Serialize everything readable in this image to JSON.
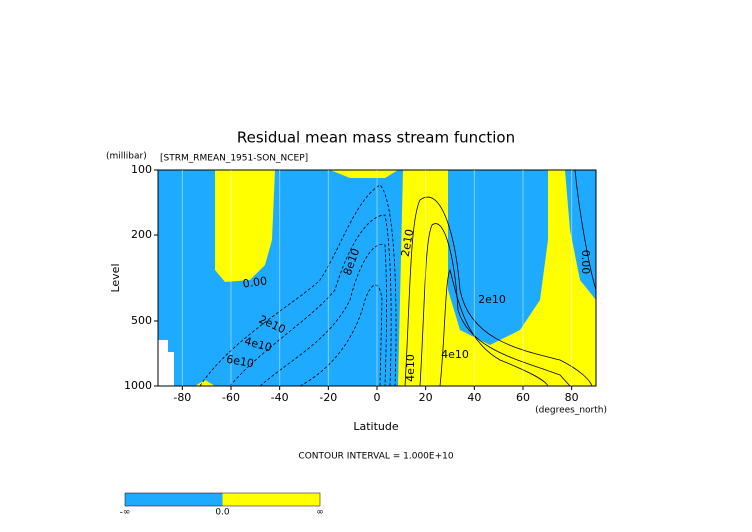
{
  "chart_data": {
    "type": "contour",
    "title": "Residual mean mass stream function",
    "subtitle": "[STRM_RMEAN_1951-SON_NCEP]",
    "y_label": "Level",
    "y_unit": "(millibar)",
    "x_label": "Latitude",
    "x_unit": "(degrees_north)",
    "footer": "CONTOUR INTERVAL = 1.000E+10",
    "xlim": [
      -90,
      90
    ],
    "xticks": [
      -80,
      -60,
      -40,
      -20,
      0,
      20,
      40,
      60,
      80
    ],
    "ylim": [
      100,
      1000
    ],
    "yticks": [
      100,
      200,
      500,
      1000
    ],
    "y_log": true,
    "y_reversed": true,
    "grid": true,
    "contour_labels": [
      "0.00",
      "2e10",
      "4e10",
      "6e10",
      "8e10",
      "2e10",
      "4e10",
      "4e10",
      "2e10",
      "0.00"
    ],
    "colorbar": {
      "labels": [
        "-∞",
        "0.0",
        "∞"
      ],
      "colors": [
        "#1eaaff",
        "#ffff00"
      ]
    }
  }
}
